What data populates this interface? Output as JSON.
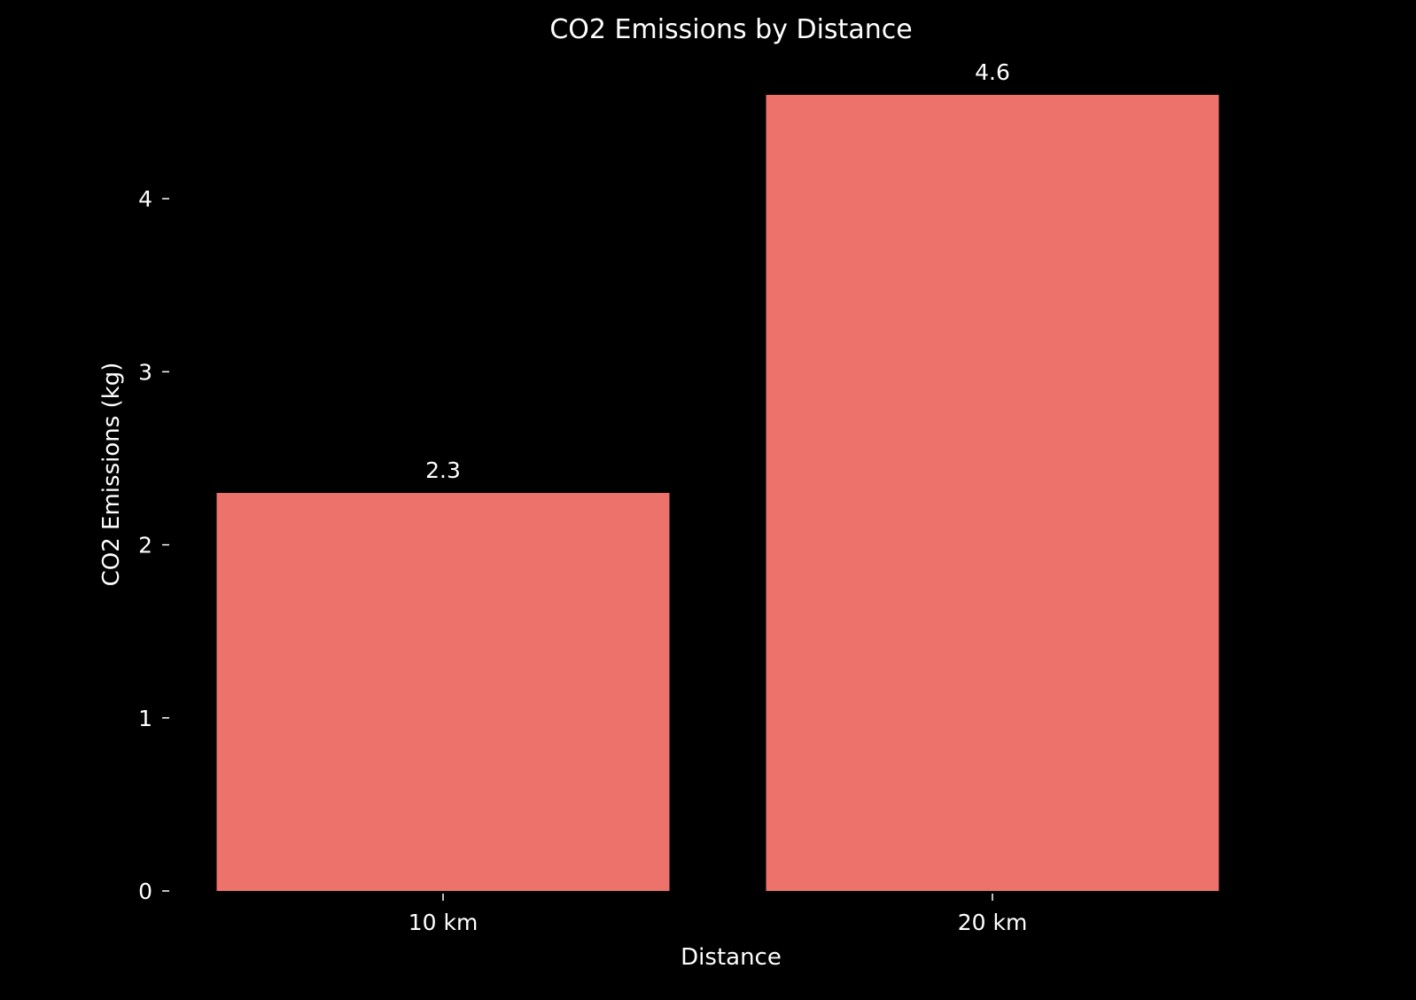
{
  "chart_data": {
    "type": "bar",
    "title": "CO2 Emissions by Distance",
    "xlabel": "Distance",
    "ylabel": "CO2 Emissions (kg)",
    "categories": [
      "10 km",
      "20 km"
    ],
    "values": [
      2.3,
      4.6
    ],
    "data_labels": [
      "2.3",
      "4.6"
    ],
    "ylim": [
      0,
      4.6
    ],
    "yticks": [
      0,
      1,
      2,
      3,
      4
    ],
    "ytick_labels": [
      "0",
      "1",
      "2",
      "3",
      "4"
    ],
    "grid": false,
    "colors": {
      "background": "#000000",
      "bar": "#ed726b",
      "text": "#ffffff"
    }
  }
}
